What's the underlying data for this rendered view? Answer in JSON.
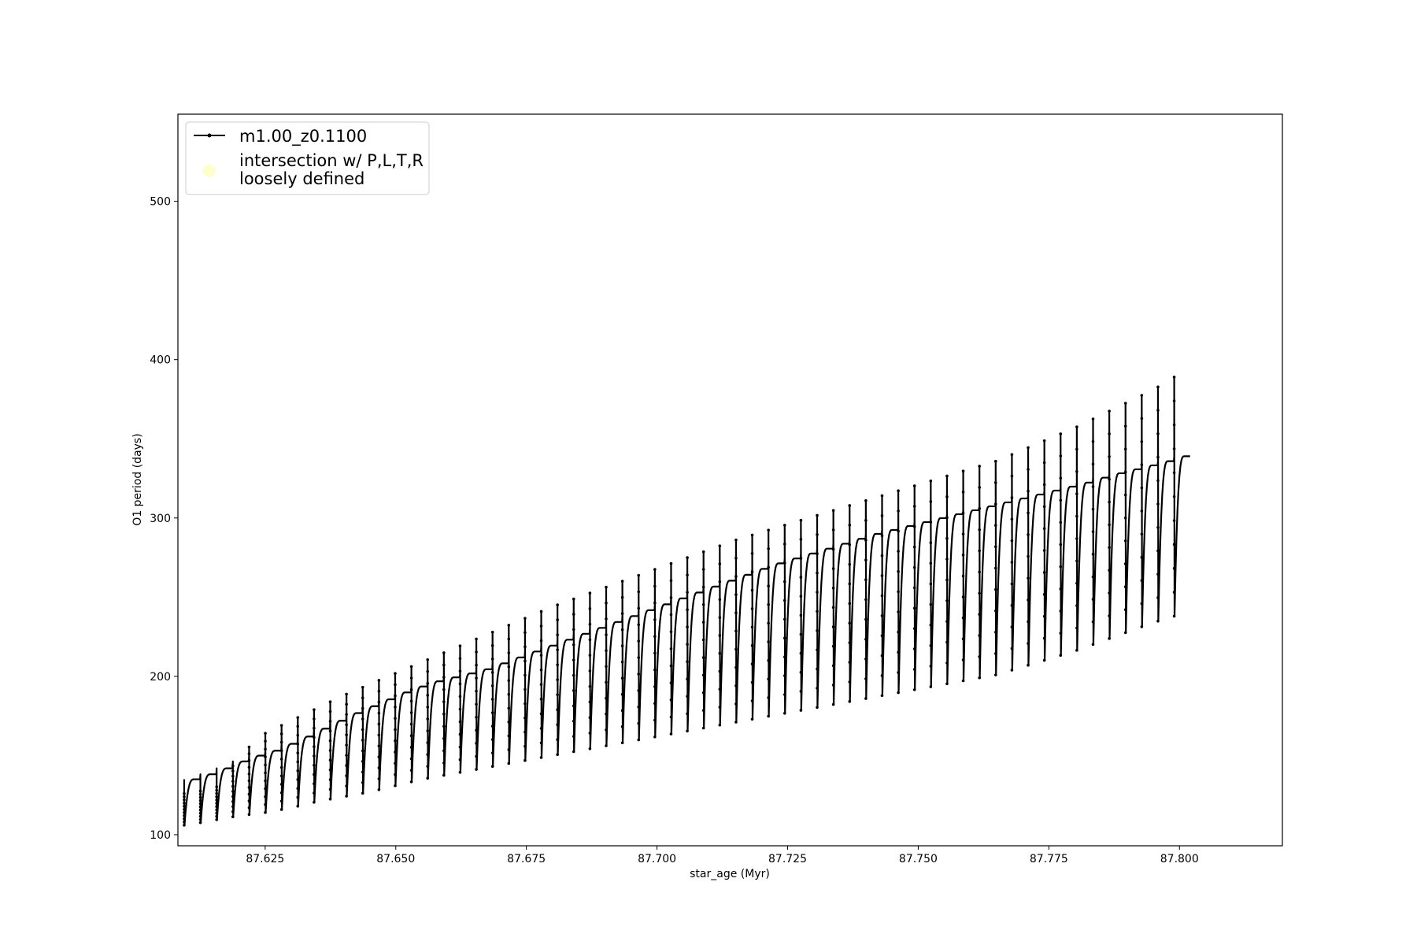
{
  "chart_data": {
    "type": "line",
    "xlabel": "star_age (Myr)",
    "ylabel": "O1 period (days)",
    "xlim": [
      87.6083,
      87.8197
    ],
    "ylim": [
      93,
      555
    ],
    "xticks": [
      "87.625",
      "87.650",
      "87.675",
      "87.700",
      "87.725",
      "87.750",
      "87.775",
      "87.800"
    ],
    "yticks": [
      "100",
      "200",
      "300",
      "400",
      "500"
    ],
    "legend_placement": "upper left",
    "grid": false,
    "series": [
      {
        "name": "m1.00_z0.1100",
        "color": "#000000",
        "marker": "dot",
        "x_start": 87.6095,
        "x_end": 87.8021,
        "pulse_count": 62,
        "pulses": [
          {
            "x": 87.61,
            "base": 106,
            "peak": 126,
            "plateau": 135
          },
          {
            "x": 87.6133,
            "base": 108,
            "peak": 128,
            "plateau": 139
          },
          {
            "x": 87.6166,
            "base": 110,
            "peak": 131,
            "plateau": 143
          },
          {
            "x": 87.62,
            "base": 112,
            "peak": 150,
            "plateau": 148
          },
          {
            "x": 87.625,
            "base": 114,
            "peak": 164,
            "plateau": 153
          },
          {
            "x": 87.63,
            "base": 117,
            "peak": 172,
            "plateau": 160
          },
          {
            "x": 87.635,
            "base": 121,
            "peak": 180,
            "plateau": 168
          },
          {
            "x": 87.64,
            "base": 124,
            "peak": 188,
            "plateau": 176
          },
          {
            "x": 87.645,
            "base": 127,
            "peak": 195,
            "plateau": 183
          },
          {
            "x": 87.65,
            "base": 131,
            "peak": 202,
            "plateau": 190
          },
          {
            "x": 87.655,
            "base": 135,
            "peak": 209,
            "plateau": 196
          },
          {
            "x": 87.66,
            "base": 138,
            "peak": 216,
            "plateau": 200
          },
          {
            "x": 87.665,
            "base": 141,
            "peak": 223,
            "plateau": 204
          },
          {
            "x": 87.67,
            "base": 144,
            "peak": 230,
            "plateau": 210
          },
          {
            "x": 87.675,
            "base": 147,
            "peak": 237,
            "plateau": 216
          },
          {
            "x": 87.68,
            "base": 150,
            "peak": 244,
            "plateau": 222
          },
          {
            "x": 87.685,
            "base": 153,
            "peak": 250,
            "plateau": 228
          },
          {
            "x": 87.69,
            "base": 156,
            "peak": 256,
            "plateau": 234
          },
          {
            "x": 87.695,
            "base": 159,
            "peak": 262,
            "plateau": 240
          },
          {
            "x": 87.7,
            "base": 162,
            "peak": 268,
            "plateau": 246
          },
          {
            "x": 87.705,
            "base": 165,
            "peak": 274,
            "plateau": 252
          },
          {
            "x": 87.71,
            "base": 168,
            "peak": 280,
            "plateau": 258
          },
          {
            "x": 87.715,
            "base": 171,
            "peak": 286,
            "plateau": 264
          },
          {
            "x": 87.72,
            "base": 174,
            "peak": 291,
            "plateau": 270
          },
          {
            "x": 87.725,
            "base": 177,
            "peak": 296,
            "plateau": 275
          },
          {
            "x": 87.73,
            "base": 180,
            "peak": 301,
            "plateau": 280
          },
          {
            "x": 87.735,
            "base": 183,
            "peak": 306,
            "plateau": 285
          },
          {
            "x": 87.74,
            "base": 186,
            "peak": 311,
            "plateau": 290
          },
          {
            "x": 87.745,
            "base": 189,
            "peak": 316,
            "plateau": 294
          },
          {
            "x": 87.75,
            "base": 192,
            "peak": 321,
            "plateau": 298
          },
          {
            "x": 87.755,
            "base": 195,
            "peak": 326,
            "plateau": 302
          },
          {
            "x": 87.76,
            "base": 198,
            "peak": 331,
            "plateau": 306
          },
          {
            "x": 87.765,
            "base": 201,
            "peak": 336,
            "plateau": 310
          },
          {
            "x": 87.77,
            "base": 206,
            "peak": 343,
            "plateau": 314
          },
          {
            "x": 87.775,
            "base": 211,
            "peak": 350,
            "plateau": 318
          },
          {
            "x": 87.78,
            "base": 216,
            "peak": 357,
            "plateau": 322
          },
          {
            "x": 87.785,
            "base": 222,
            "peak": 365,
            "plateau": 327
          },
          {
            "x": 87.79,
            "base": 228,
            "peak": 373,
            "plateau": 331
          },
          {
            "x": 87.795,
            "base": 234,
            "peak": 381,
            "plateau": 335
          },
          {
            "x": 87.8,
            "base": 239,
            "peak": 391,
            "plateau": 340
          }
        ]
      }
    ],
    "legend": [
      {
        "label": "m1.00_z0.1100",
        "kind": "line-with-dot",
        "color": "#000000"
      },
      {
        "label_line1": "intersection w/ P,L,T,R",
        "label_line2": "loosely defined",
        "kind": "circle",
        "color": "#ffffcc"
      }
    ]
  }
}
